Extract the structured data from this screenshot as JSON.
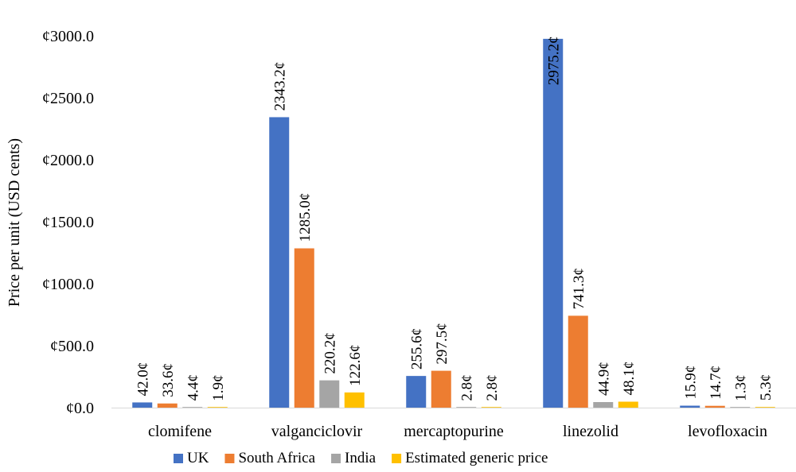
{
  "chart_data": {
    "type": "bar",
    "title": "",
    "ylabel": "Price per unit (USD cents)",
    "xlabel": "",
    "ylim": [
      0,
      3000
    ],
    "yticks": [
      0,
      500,
      1000,
      1500,
      2000,
      2500,
      3000
    ],
    "ytick_labels": [
      "¢0.0",
      "¢500.0",
      "¢1000.0",
      "¢1500.0",
      "¢2000.0",
      "¢2500.0",
      "¢3000.0"
    ],
    "grid": false,
    "legend_position": "bottom",
    "categories": [
      "clomifene",
      "valganciclovir",
      "mercaptopurine",
      "linezolid",
      "levofloxacin"
    ],
    "series": [
      {
        "name": "UK",
        "color": "#4472C4",
        "values": [
          42.0,
          2343.2,
          255.6,
          2975.2,
          15.9
        ],
        "labels": [
          "42.0¢",
          "2343.2¢",
          "255.6¢",
          "2975.2¢",
          "15.9¢"
        ]
      },
      {
        "name": "South Africa",
        "color": "#ED7D31",
        "values": [
          33.6,
          1285.0,
          297.5,
          741.3,
          14.7
        ],
        "labels": [
          "33.6¢",
          "1285.0¢",
          "297.5¢",
          "741.3¢",
          "14.7¢"
        ]
      },
      {
        "name": "India",
        "color": "#A5A5A5",
        "values": [
          4.4,
          220.2,
          2.8,
          44.9,
          1.3
        ],
        "labels": [
          "4.4¢",
          "220.2¢",
          "2.8¢",
          "44.9¢",
          "1.3¢"
        ]
      },
      {
        "name": "Estimated generic price",
        "color": "#FFC000",
        "values": [
          1.9,
          122.6,
          2.8,
          48.1,
          5.3
        ],
        "labels": [
          "1.9¢",
          "122.6¢",
          "2.8¢",
          "48.1¢",
          "5.3¢"
        ]
      }
    ]
  }
}
